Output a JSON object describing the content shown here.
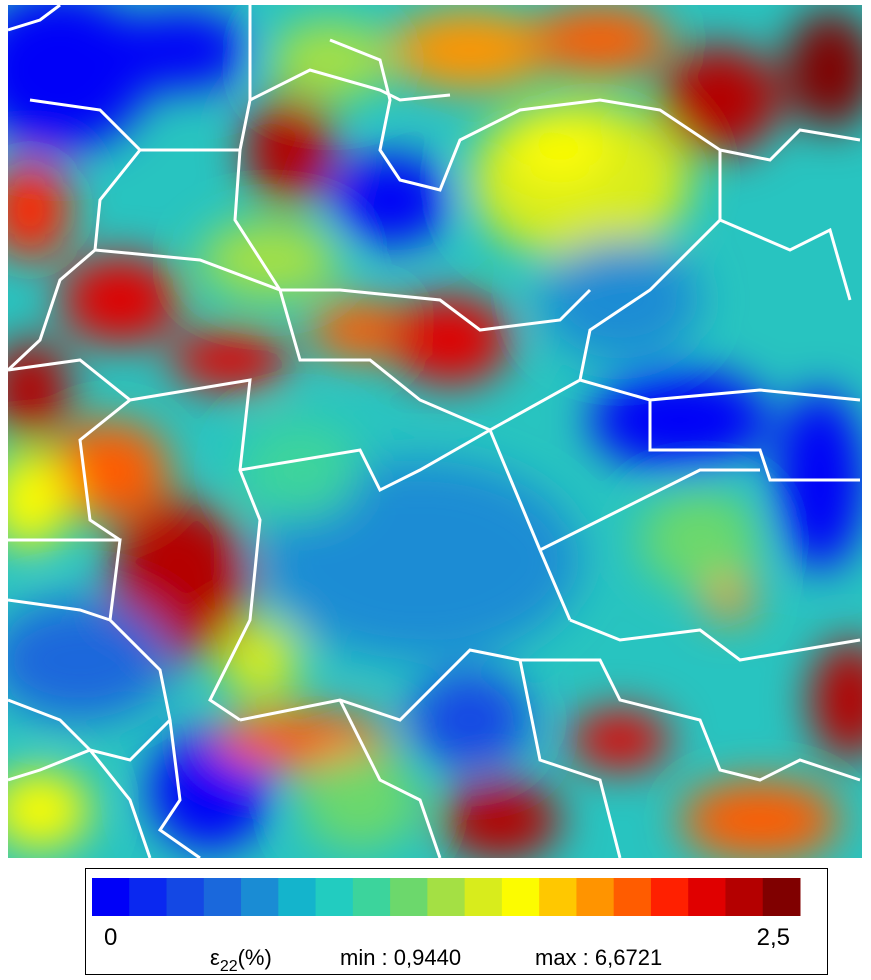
{
  "colorbar": {
    "colors": [
      "#0000f8",
      "#0a28f0",
      "#1448e4",
      "#1a68dc",
      "#1a8cd4",
      "#14b4cc",
      "#22ccc0",
      "#3cd49c",
      "#6cd86c",
      "#a4e044",
      "#d8ec1c",
      "#fcfc00",
      "#ffc800",
      "#ff9400",
      "#ff5c00",
      "#ff2000",
      "#e00000",
      "#b40000",
      "#800000"
    ],
    "min_tick": "0",
    "max_tick": "2,5",
    "quantity": {
      "symbol": "ε",
      "subscript": "22",
      "unit": "(%)"
    },
    "min_label": "min : 0,9440",
    "max_label": "max : 6,6721"
  }
}
